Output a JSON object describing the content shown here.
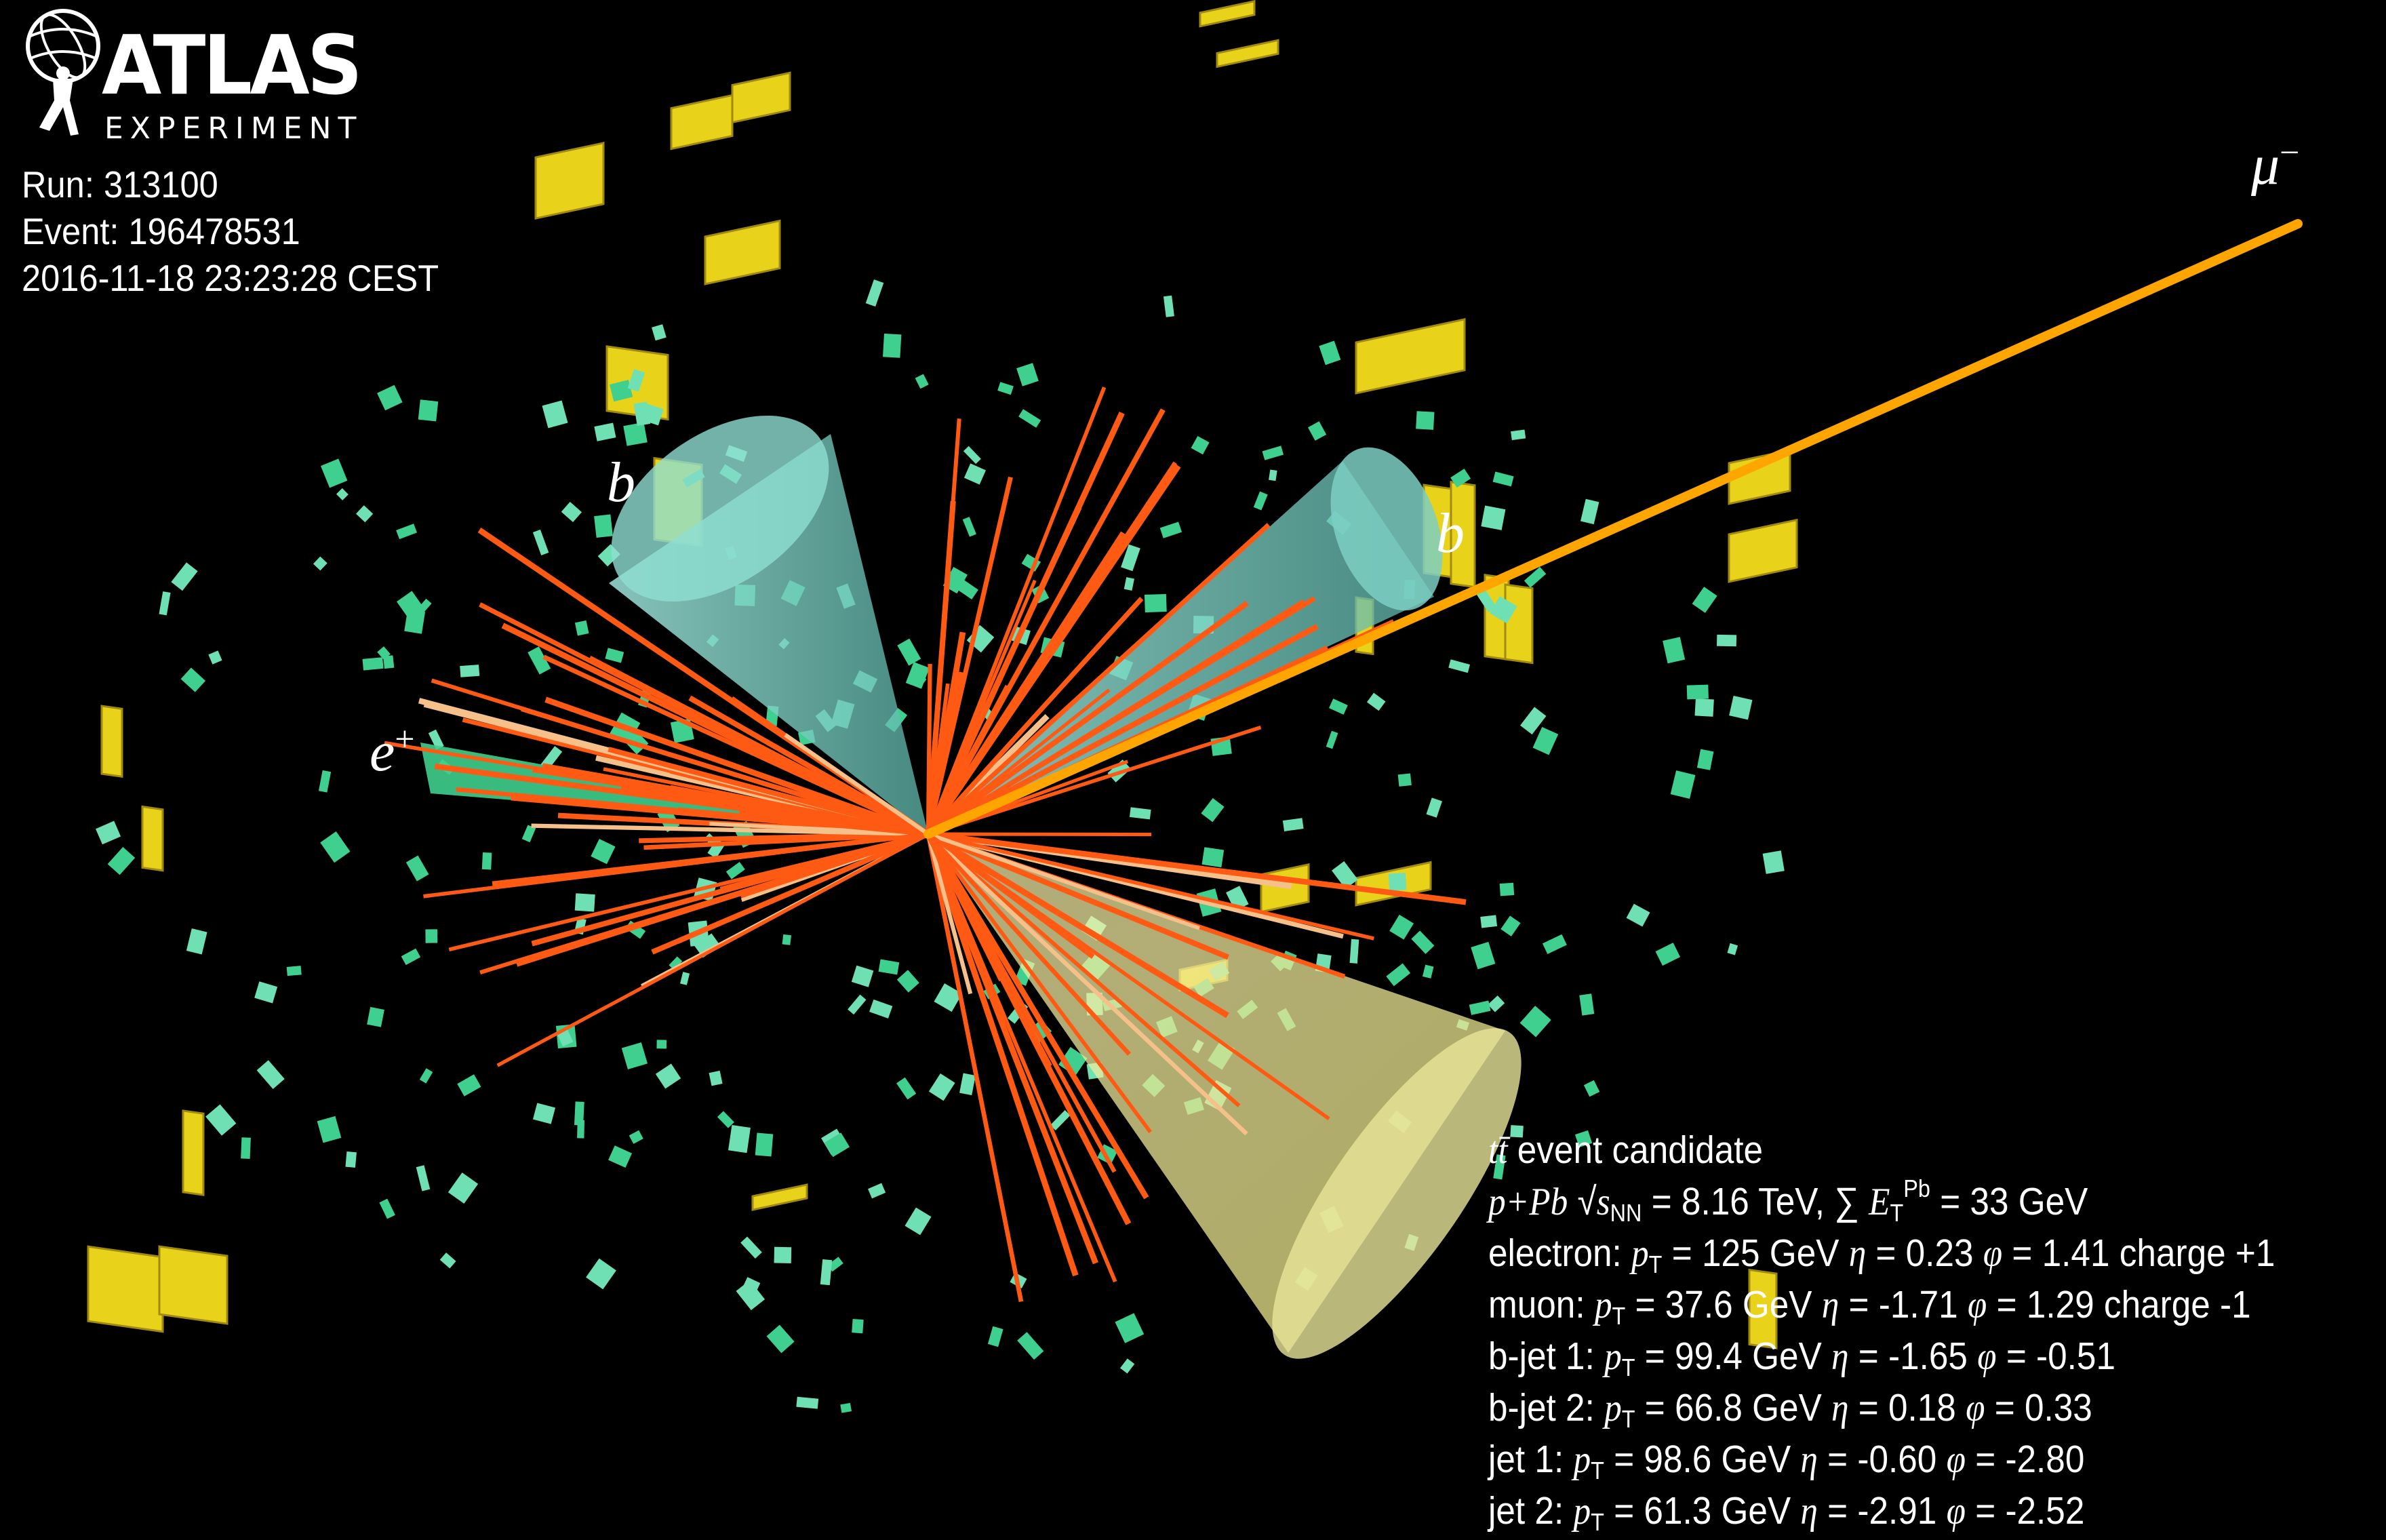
{
  "logo": {
    "word": "ATLAS",
    "subtitle": "EXPERIMENT"
  },
  "event_meta": {
    "run": "Run: 313100",
    "event": "Event: 196478531",
    "timestamp": "2016-11-18 23:23:28 CEST"
  },
  "labels": {
    "bjet_left": "b",
    "bjet_right": "b",
    "electron": "e",
    "electron_sup": "+",
    "muon": "μ",
    "muon_sup": "−"
  },
  "info": {
    "title_symbol": "tt̄",
    "title": "event candidate",
    "collision": {
      "system": "p+Pb",
      "sqrt": "√",
      "s": "s",
      "s_sub": "NN",
      "energy": "= 8.16 TeV,",
      "sum": "∑",
      "et": "E",
      "et_sub": "T",
      "et_sup": "Pb",
      "et_value": "= 33 GeV"
    },
    "symbols": {
      "pt": "p",
      "pt_sub": "T",
      "eta": "η",
      "phi": "φ",
      "eq": "="
    },
    "objects": [
      {
        "label": "electron:",
        "pt": "125 GeV",
        "eta": "0.23",
        "phi": "1.41",
        "charge": "charge +1"
      },
      {
        "label": "muon:",
        "pt": "37.6 GeV",
        "eta": "-1.71",
        "phi": "1.29",
        "charge": "charge -1"
      },
      {
        "label": "b-jet 1:",
        "pt": "99.4 GeV",
        "eta": "-1.65",
        "phi": "-0.51"
      },
      {
        "label": "b-jet 2:",
        "pt": "66.8 GeV",
        "eta": "0.18",
        "phi": "0.33"
      },
      {
        "label": "jet 1:",
        "pt": "98.6 GeV",
        "eta": "-0.60",
        "phi": "-2.80"
      },
      {
        "label": "jet 2:",
        "pt": "61.3 GeV",
        "eta": "-2.91",
        "phi": "-2.52"
      }
    ]
  },
  "colors": {
    "background": "#000000",
    "tracks": "#ff5a14",
    "muon": "#ffa500",
    "bjet_cone": "#7fd6c8",
    "jet_cone": "#f2f0a0",
    "electron_cone": "#3fcf8e",
    "calo_cells": "#e8d21a",
    "em_cells": "#3fcf8e"
  }
}
